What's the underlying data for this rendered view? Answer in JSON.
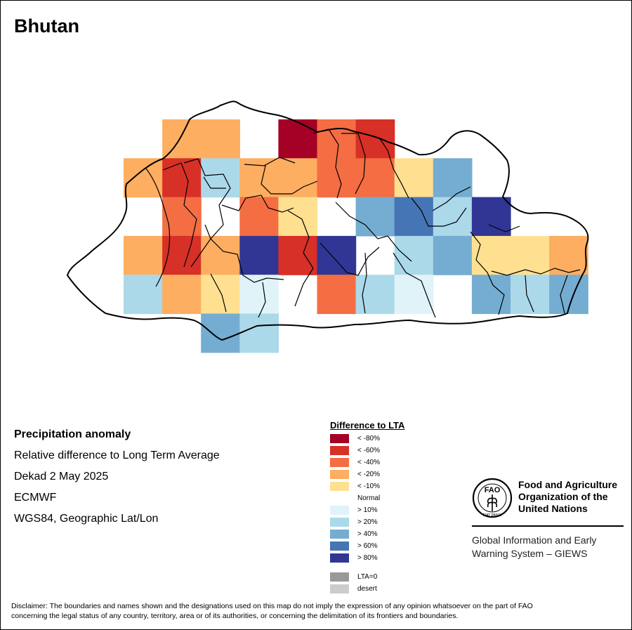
{
  "title": "Bhutan",
  "info": {
    "heading": "Precipitation anomaly",
    "line1": "Relative difference to Long Term Average",
    "line2": "Dekad 2 May 2025",
    "line3": "ECMWF",
    "line4": "WGS84, Geographic Lat/Lon"
  },
  "legend": {
    "title": "Difference to LTA",
    "classes": [
      {
        "label": "< -80%",
        "color": "#a50026"
      },
      {
        "label": "< -60%",
        "color": "#d73027"
      },
      {
        "label": "< -40%",
        "color": "#f46d43"
      },
      {
        "label": "< -20%",
        "color": "#fdae61"
      },
      {
        "label": "< -10%",
        "color": "#fee090"
      },
      {
        "label": "Normal",
        "color": "#ffffff"
      },
      {
        "label": "> 10%",
        "color": "#e0f3f8"
      },
      {
        "label": "> 20%",
        "color": "#abd9e9"
      },
      {
        "label": "> 40%",
        "color": "#74add1"
      },
      {
        "label": "> 60%",
        "color": "#4575b4"
      },
      {
        "label": "> 80%",
        "color": "#313695"
      }
    ],
    "extra": [
      {
        "label": "LTA=0",
        "color": "#999999"
      },
      {
        "label": "desert",
        "color": "#cccccc"
      }
    ]
  },
  "grid": [
    [
      null,
      "p20",
      "p20",
      null,
      "m80",
      "p40",
      "m60",
      null,
      null,
      null,
      null,
      null
    ],
    [
      "p20",
      "m60",
      "g20",
      "p20",
      "p20",
      "p40",
      "p40",
      "p10",
      "g40",
      null,
      null,
      null
    ],
    [
      null,
      "p40",
      null,
      "p40",
      "p10",
      null,
      "g40",
      "g60",
      "g20",
      "g80",
      null,
      null
    ],
    [
      "p20",
      "m60",
      "p20",
      "g80",
      "m60",
      "g80",
      null,
      "g20",
      "g40",
      "p10",
      "p10",
      "p20"
    ],
    [
      "g20",
      "p20",
      "p10",
      "g10",
      null,
      "p40",
      "g20",
      "g10",
      null,
      "g40",
      "g20",
      "g40"
    ],
    [
      null,
      null,
      "g40",
      "g20",
      null,
      null,
      null,
      null,
      null,
      null,
      null,
      null
    ]
  ],
  "fao": {
    "name_line1": "Food and Agriculture",
    "name_line2": "Organization of the",
    "name_line3": "United Nations",
    "giews_line1": "Global Information and Early",
    "giews_line2": "Warning System – GIEWS",
    "logo_letters": "FAO",
    "logo_motto": "FIAT PANIS"
  },
  "disclaimer_line1": "Disclaimer: The boundaries and names shown and the designations used on this map do not imply the expression of any opinion whatsoever on the part of FAO",
  "disclaimer_line2": "concerning the legal status of any country, territory, area or of its authorities, or concerning the delimitation of its frontiers and boundaries."
}
